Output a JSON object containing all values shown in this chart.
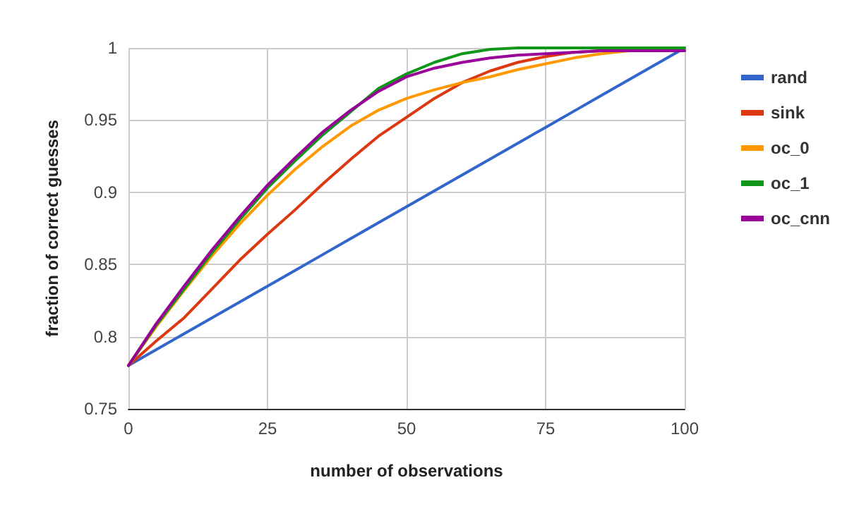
{
  "chart_data": {
    "type": "line",
    "xlabel": "number of observations",
    "ylabel": "fraction of correct guesses",
    "x": [
      0,
      5,
      10,
      15,
      20,
      25,
      30,
      35,
      40,
      45,
      50,
      55,
      60,
      65,
      70,
      75,
      80,
      85,
      90,
      95,
      100
    ],
    "xlim": [
      0,
      100
    ],
    "xticks": [
      0,
      25,
      50,
      75,
      100
    ],
    "ylim": [
      0.75,
      1
    ],
    "yticks": [
      0.75,
      0.8,
      0.85,
      0.9,
      0.95,
      1
    ],
    "grid": true,
    "legend": "right",
    "marker": "none",
    "line_style": "solid",
    "series": [
      {
        "name": "rand",
        "color": "#3366cc",
        "values": [
          0.78,
          0.791,
          0.802,
          0.813,
          0.824,
          0.835,
          0.846,
          0.857,
          0.868,
          0.879,
          0.89,
          0.901,
          0.912,
          0.923,
          0.934,
          0.945,
          0.956,
          0.967,
          0.978,
          0.989,
          1.0
        ]
      },
      {
        "name": "sink",
        "color": "#dc3912",
        "values": [
          0.78,
          0.797,
          0.813,
          0.833,
          0.853,
          0.871,
          0.888,
          0.906,
          0.923,
          0.939,
          0.952,
          0.965,
          0.976,
          0.984,
          0.99,
          0.994,
          0.997,
          0.998,
          0.999,
          null,
          null
        ]
      },
      {
        "name": "oc_0",
        "color": "#ff9900",
        "values": [
          0.78,
          0.807,
          0.832,
          0.856,
          0.878,
          0.898,
          0.916,
          0.932,
          0.946,
          0.957,
          0.965,
          0.971,
          0.976,
          0.98,
          0.985,
          0.989,
          0.993,
          0.996,
          0.998,
          0.999,
          1.0
        ]
      },
      {
        "name": "oc_1",
        "color": "#109618",
        "values": [
          0.78,
          0.808,
          0.833,
          0.858,
          0.881,
          0.903,
          0.922,
          0.94,
          0.956,
          0.972,
          0.982,
          0.99,
          0.996,
          0.999,
          1.0,
          1.0,
          1.0,
          1.0,
          1.0,
          1.0,
          1.0
        ]
      },
      {
        "name": "oc_cnn",
        "color": "#990099",
        "values": [
          0.78,
          0.809,
          0.835,
          0.86,
          0.883,
          0.905,
          0.924,
          0.942,
          0.957,
          0.97,
          0.98,
          0.986,
          0.99,
          0.993,
          0.995,
          0.996,
          0.997,
          0.998,
          0.998,
          0.998,
          0.998
        ]
      }
    ]
  }
}
